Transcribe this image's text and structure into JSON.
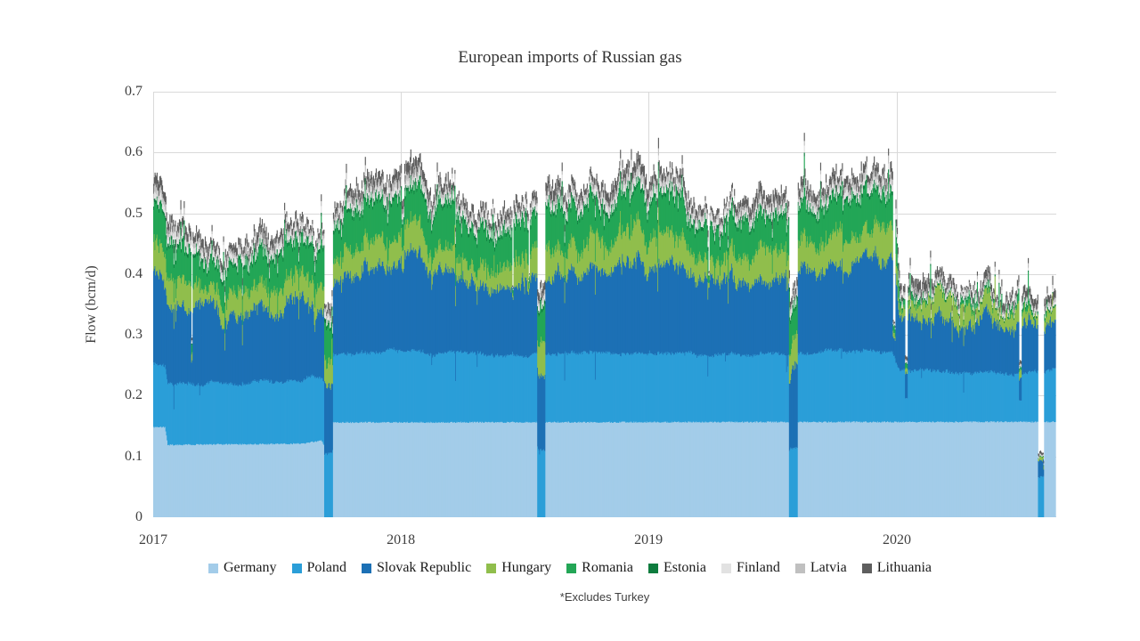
{
  "chart_data": {
    "type": "area",
    "stacked": true,
    "title": "European imports of Russian gas",
    "ylabel": "Flow (bcm/d)",
    "footnote": "*Excludes Turkey",
    "ylim": [
      0,
      0.7
    ],
    "y_ticks": [
      "0",
      "0.1",
      "0.2",
      "0.3",
      "0.4",
      "0.5",
      "0.6",
      "0.7"
    ],
    "x_ticks": [
      {
        "label": "2017",
        "day": 0
      },
      {
        "label": "2018",
        "day": 365
      },
      {
        "label": "2019",
        "day": 730
      },
      {
        "label": "2020",
        "day": 1096
      }
    ],
    "axis_days": 1331,
    "data_days": 1330,
    "grid": true,
    "legend_position": "bottom",
    "noise_seed": 20,
    "colors": {
      "grid": "#D9D9D9",
      "title_text": "#333333",
      "tick_text": "#404040",
      "legend_text": "#1A1A1A",
      "footnote_text": "#404040"
    },
    "series": [
      {
        "name": "Germany",
        "color": "#A3CCE9",
        "points": [
          [
            0,
            0.148
          ],
          [
            17,
            0.148
          ],
          [
            21,
            0.119
          ],
          [
            220,
            0.121
          ],
          [
            248,
            0.126
          ],
          [
            251,
            0.12
          ],
          [
            265,
            0.156
          ],
          [
            1330,
            0.157
          ]
        ],
        "noise": {
          "j": 0.0012
        }
      },
      {
        "name": "Poland",
        "color": "#2B9ED8",
        "points": [
          [
            0,
            0.106
          ],
          [
            60,
            0.101
          ],
          [
            120,
            0.099
          ],
          [
            200,
            0.104
          ],
          [
            252,
            0.103
          ],
          [
            265,
            0.113
          ],
          [
            330,
            0.116
          ],
          [
            420,
            0.113
          ],
          [
            500,
            0.11
          ],
          [
            600,
            0.113
          ],
          [
            680,
            0.116
          ],
          [
            760,
            0.113
          ],
          [
            840,
            0.11
          ],
          [
            920,
            0.112
          ],
          [
            1000,
            0.116
          ],
          [
            1088,
            0.115
          ],
          [
            1098,
            0.088
          ],
          [
            1170,
            0.081
          ],
          [
            1260,
            0.079
          ],
          [
            1330,
            0.084
          ]
        ],
        "noise": {
          "j": 0.0022,
          "w": 0.003,
          "sp": 0.012,
          "sa": 0.05,
          "sd": -1
        }
      },
      {
        "name": "Slovak Republic",
        "color": "#1C70B5",
        "points": [
          [
            0,
            0.156
          ],
          [
            45,
            0.131
          ],
          [
            90,
            0.11
          ],
          [
            110,
            0.104
          ],
          [
            140,
            0.112
          ],
          [
            170,
            0.119
          ],
          [
            200,
            0.126
          ],
          [
            230,
            0.134
          ],
          [
            260,
            0.128
          ],
          [
            290,
            0.136
          ],
          [
            320,
            0.149
          ],
          [
            355,
            0.151
          ],
          [
            385,
            0.152
          ],
          [
            415,
            0.147
          ],
          [
            445,
            0.131
          ],
          [
            475,
            0.108
          ],
          [
            505,
            0.104
          ],
          [
            535,
            0.113
          ],
          [
            565,
            0.119
          ],
          [
            595,
            0.127
          ],
          [
            625,
            0.134
          ],
          [
            655,
            0.141
          ],
          [
            685,
            0.148
          ],
          [
            715,
            0.151
          ],
          [
            750,
            0.148
          ],
          [
            780,
            0.142
          ],
          [
            810,
            0.127
          ],
          [
            840,
            0.112
          ],
          [
            870,
            0.108
          ],
          [
            900,
            0.11
          ],
          [
            930,
            0.118
          ],
          [
            960,
            0.129
          ],
          [
            990,
            0.135
          ],
          [
            1020,
            0.141
          ],
          [
            1050,
            0.153
          ],
          [
            1085,
            0.155
          ],
          [
            1094,
            0.15
          ],
          [
            1099,
            0.094
          ],
          [
            1130,
            0.083
          ],
          [
            1160,
            0.088
          ],
          [
            1190,
            0.086
          ],
          [
            1225,
            0.094
          ],
          [
            1255,
            0.082
          ],
          [
            1285,
            0.085
          ],
          [
            1310,
            0.087
          ],
          [
            1330,
            0.082
          ]
        ],
        "noise": {
          "j": 0.007,
          "w": 0.014,
          "sp": 0.02,
          "sa": 0.05,
          "sd": -1
        }
      },
      {
        "name": "Hungary",
        "color": "#90BE4C",
        "points": [
          [
            0,
            0.045
          ],
          [
            60,
            0.038
          ],
          [
            110,
            0.034
          ],
          [
            150,
            0.038
          ],
          [
            225,
            0.044
          ],
          [
            285,
            0.04
          ],
          [
            320,
            0.046
          ],
          [
            355,
            0.049
          ],
          [
            385,
            0.05
          ],
          [
            445,
            0.04
          ],
          [
            475,
            0.034
          ],
          [
            535,
            0.041
          ],
          [
            580,
            0.048
          ],
          [
            625,
            0.046
          ],
          [
            685,
            0.05
          ],
          [
            715,
            0.05
          ],
          [
            750,
            0.048
          ],
          [
            810,
            0.04
          ],
          [
            840,
            0.038
          ],
          [
            900,
            0.043
          ],
          [
            960,
            0.048
          ],
          [
            1020,
            0.05
          ],
          [
            1050,
            0.052
          ],
          [
            1085,
            0.048
          ],
          [
            1094,
            0.046
          ],
          [
            1100,
            0.03
          ],
          [
            1130,
            0.04
          ],
          [
            1160,
            0.034
          ],
          [
            1190,
            0.022
          ],
          [
            1215,
            0.013
          ],
          [
            1245,
            0.016
          ],
          [
            1275,
            0.018
          ],
          [
            1305,
            0.014
          ],
          [
            1330,
            0.013
          ]
        ],
        "noise": {
          "j": 0.0055,
          "w": 0.009,
          "sp": 0.03,
          "sa": 0.05,
          "sd": 0
        }
      },
      {
        "name": "Romania",
        "color": "#23A656",
        "points": [
          [
            0,
            0.058
          ],
          [
            60,
            0.05
          ],
          [
            110,
            0.044
          ],
          [
            150,
            0.05
          ],
          [
            225,
            0.058
          ],
          [
            285,
            0.054
          ],
          [
            320,
            0.058
          ],
          [
            355,
            0.061
          ],
          [
            385,
            0.062
          ],
          [
            445,
            0.052
          ],
          [
            475,
            0.046
          ],
          [
            535,
            0.054
          ],
          [
            580,
            0.058
          ],
          [
            625,
            0.058
          ],
          [
            685,
            0.061
          ],
          [
            715,
            0.062
          ],
          [
            750,
            0.058
          ],
          [
            810,
            0.05
          ],
          [
            840,
            0.046
          ],
          [
            900,
            0.052
          ],
          [
            960,
            0.056
          ],
          [
            1020,
            0.056
          ],
          [
            1050,
            0.058
          ],
          [
            1085,
            0.05
          ],
          [
            1094,
            0.048
          ],
          [
            1100,
            0.011
          ],
          [
            1150,
            0.006
          ],
          [
            1250,
            0.005
          ],
          [
            1330,
            0.006
          ]
        ],
        "noise": {
          "j": 0.0055,
          "w": 0.008,
          "sp": 0.03,
          "sa": 0.055,
          "sd": 1
        }
      },
      {
        "name": "Estonia",
        "color": "#0E7C3E",
        "points": [
          [
            0,
            0.006
          ],
          [
            1094,
            0.006
          ],
          [
            1100,
            0.003
          ],
          [
            1330,
            0.003
          ]
        ],
        "noise": {
          "j": 0.001
        }
      },
      {
        "name": "Finland",
        "color": "#E2E2E2",
        "points": [
          [
            0,
            0.011
          ],
          [
            1094,
            0.01
          ],
          [
            1100,
            0.006
          ],
          [
            1330,
            0.005
          ]
        ],
        "noise": {
          "j": 0.0015
        }
      },
      {
        "name": "Latvia",
        "color": "#C0C0C0",
        "points": [
          [
            0,
            0.012
          ],
          [
            90,
            0.006
          ],
          [
            270,
            0.007
          ],
          [
            355,
            0.012
          ],
          [
            475,
            0.006
          ],
          [
            655,
            0.007
          ],
          [
            715,
            0.012
          ],
          [
            840,
            0.006
          ],
          [
            1020,
            0.008
          ],
          [
            1085,
            0.012
          ],
          [
            1100,
            0.006
          ],
          [
            1330,
            0.006
          ]
        ],
        "noise": {
          "j": 0.002
        }
      },
      {
        "name": "Lithuania",
        "color": "#5E5E5E",
        "points": [
          [
            0,
            0.016
          ],
          [
            90,
            0.011
          ],
          [
            270,
            0.012
          ],
          [
            355,
            0.016
          ],
          [
            475,
            0.011
          ],
          [
            655,
            0.012
          ],
          [
            715,
            0.016
          ],
          [
            840,
            0.011
          ],
          [
            1020,
            0.013
          ],
          [
            1085,
            0.016
          ],
          [
            1100,
            0.011
          ],
          [
            1330,
            0.011
          ]
        ],
        "noise": {
          "j": 0.003,
          "w": 0.003
        }
      }
    ],
    "events": [
      {
        "start": 56,
        "len": 2,
        "factors": {
          "Germany": 1,
          "Poland": 1
        },
        "default": 0.3
      },
      {
        "start": 252,
        "len": 13,
        "factors": {
          "Germany": 0
        },
        "default": 1
      },
      {
        "start": 366,
        "len": 4,
        "factors": {
          "Germany": 1,
          "Poland": 1
        },
        "default": 0.82
      },
      {
        "start": 529,
        "len": 2,
        "factors": {
          "Germany": 1,
          "Poland": 1,
          "Slovak Republic": 0.9
        },
        "default": 0.15
      },
      {
        "start": 553,
        "len": 2,
        "factors": {
          "Germany": 1,
          "Poland": 1,
          "Slovak Republic": 0.9
        },
        "default": 0.2
      },
      {
        "start": 566,
        "len": 12,
        "factors": {
          "Germany": 0
        },
        "default": 1
      },
      {
        "start": 818,
        "len": 2,
        "factors": {
          "Germany": 1,
          "Poland": 1,
          "Slovak Republic": 0.9
        },
        "default": 0.25
      },
      {
        "start": 937,
        "len": 13,
        "factors": {
          "Germany": 0
        },
        "default": 1
      },
      {
        "start": 1090,
        "len": 4,
        "factors": {
          "Germany": 1,
          "Poland": 1
        },
        "default": 0.2
      },
      {
        "start": 1108,
        "len": 4,
        "factors": {
          "Germany": 1
        },
        "default": 0.45
      },
      {
        "start": 1276,
        "len": 4,
        "factors": {
          "Germany": 1
        },
        "default": 0.45
      },
      {
        "start": 1304,
        "len": 9,
        "factors": {
          "Germany": 0,
          "Poland": 0.8,
          "Slovak Republic": 0.35
        },
        "default": 0.3
      }
    ]
  }
}
